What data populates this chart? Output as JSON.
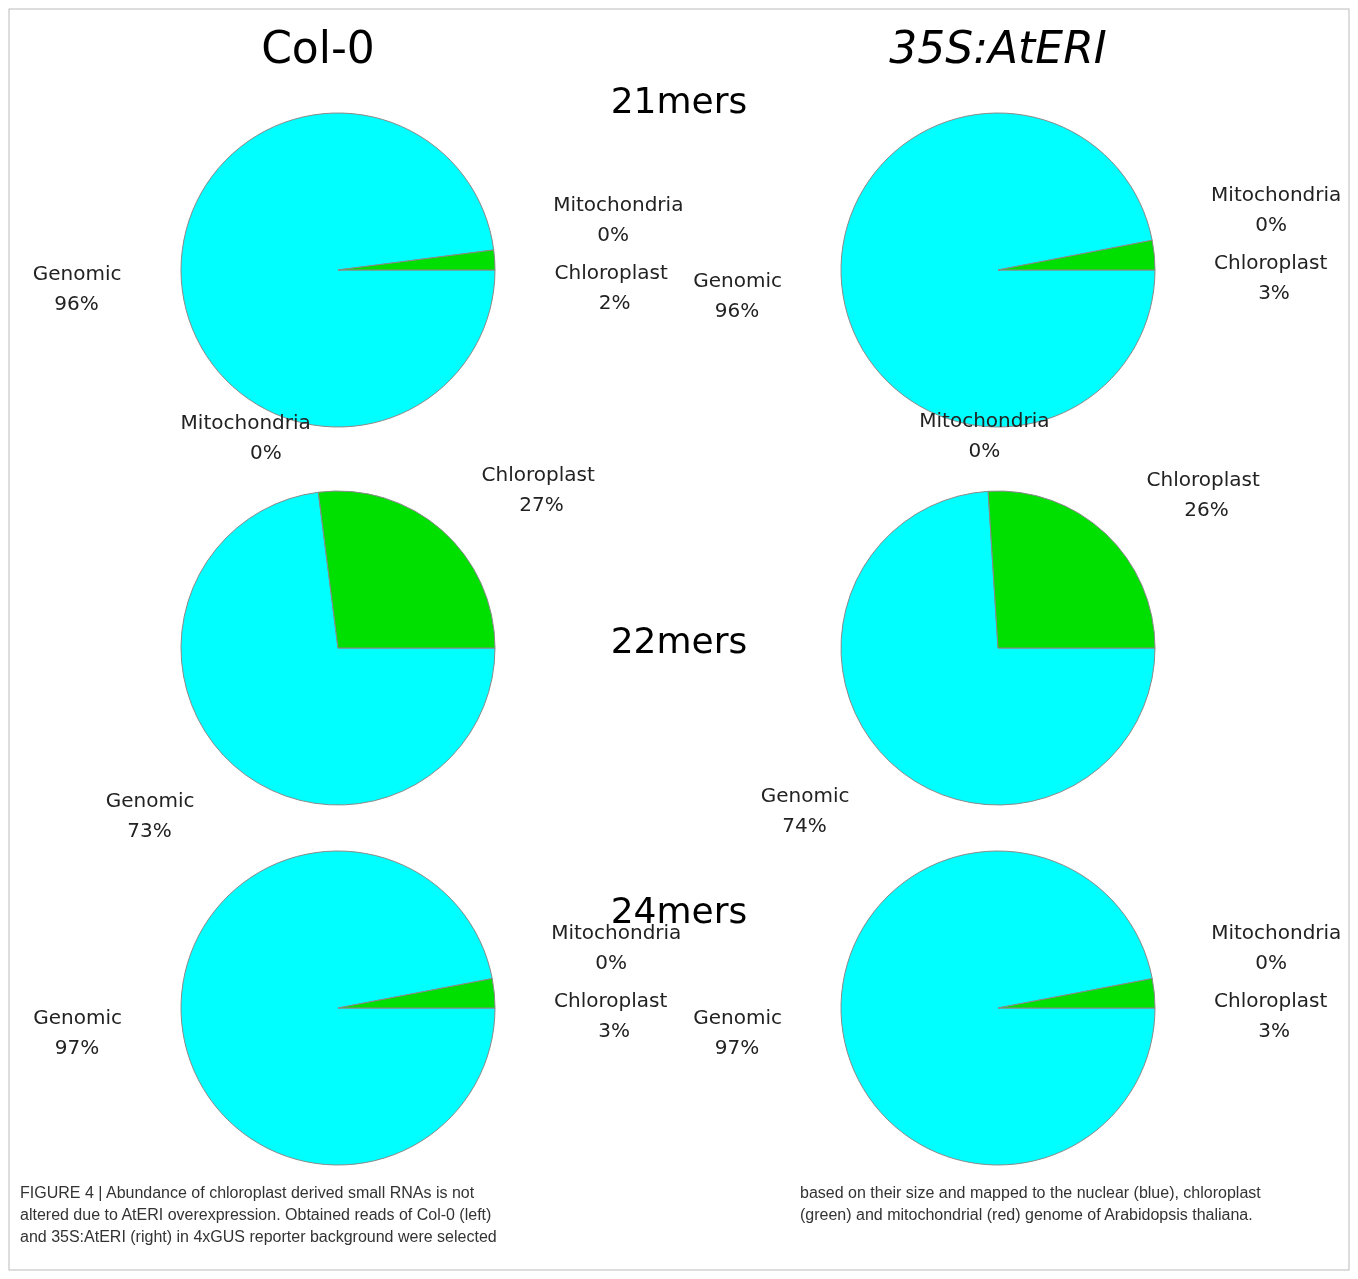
{
  "chart_data": [
    {
      "type": "pie",
      "title": "Col-0",
      "subtitle": "21mers",
      "categories": [
        "Genomic",
        "Mitochondria",
        "Chloroplast"
      ],
      "values": [
        96,
        0,
        2
      ],
      "value_labels": [
        "96%",
        "0%",
        "2%"
      ],
      "colors": [
        "#00ffff",
        "#c00000",
        "#00e000"
      ],
      "annotations": [
        "FIGURE 4 | Abundance of chloroplast derived small RNAs is not altered due to AtERI overexpression. Obtained reads of Col-0 (left) and 35S:AtERI (right) in 4xGUS reporter background were selected based on their size and mapped to the nuclear (blue), chloroplast (green) and mitochondrial (red) genome of Arabidopsis thaliana."
      ]
    },
    {
      "type": "pie",
      "title": "35S:AtERI",
      "categories": [
        "Genomic",
        "Mitochondria",
        "Chloroplast"
      ],
      "values": [
        96,
        0,
        3
      ],
      "value_labels": [
        "96%",
        "0%",
        "3%"
      ],
      "colors": [
        "#00ffff",
        "#c00000",
        "#00e000"
      ]
    },
    {
      "type": "pie",
      "subtitle": "22mers",
      "categories": [
        "Genomic",
        "Mitochondria",
        "Chloroplast"
      ],
      "values": [
        73,
        0,
        27
      ],
      "value_labels": [
        "73%",
        "0%",
        "27%"
      ],
      "colors": [
        "#00ffff",
        "#c00000",
        "#00e000"
      ]
    },
    {
      "type": "pie",
      "categories": [
        "Genomic",
        "Mitochondria",
        "Chloroplast"
      ],
      "values": [
        74,
        0,
        26
      ],
      "value_labels": [
        "74%",
        "0%",
        "26%"
      ],
      "colors": [
        "#00ffff",
        "#c00000",
        "#00e000"
      ]
    },
    {
      "type": "pie",
      "subtitle": "24mers",
      "categories": [
        "Genomic",
        "Mitochondria",
        "Chloroplast"
      ],
      "values": [
        97,
        0,
        3
      ],
      "value_labels": [
        "97%",
        "0%",
        "3%"
      ],
      "colors": [
        "#00ffff",
        "#c00000",
        "#00e000"
      ]
    },
    {
      "type": "pie",
      "categories": [
        "Genomic",
        "Mitochondria",
        "Chloroplast"
      ],
      "values": [
        97,
        0,
        3
      ],
      "value_labels": [
        "97%",
        "0%",
        "3%"
      ],
      "colors": [
        "#00ffff",
        "#c00000",
        "#00e000"
      ]
    }
  ]
}
